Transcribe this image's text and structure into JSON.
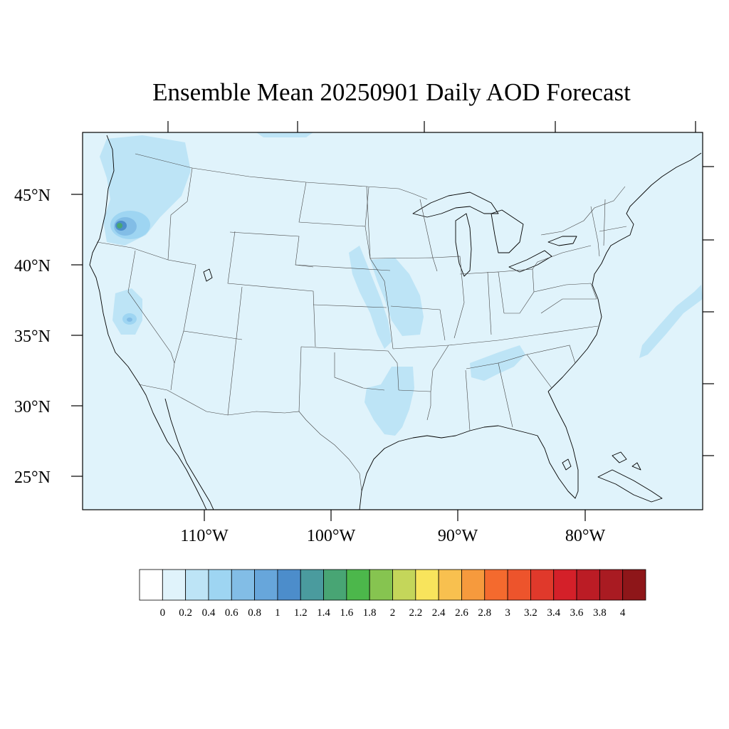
{
  "title": "Ensemble Mean 20250901 Daily AOD Forecast",
  "map": {
    "projection": "Lambert conformal (CONUS)",
    "background_aod_color": "#e0f3fb",
    "latitude_labels": [
      "45°N",
      "40°N",
      "35°N",
      "30°N",
      "25°N"
    ],
    "longitude_labels": [
      "110°W",
      "100°W",
      "90°W",
      "80°W"
    ],
    "aod_features": [
      {
        "region": "Pacific Northwest / Washington",
        "level": "0.2-0.4"
      },
      {
        "region": "Central Oregon smoke core",
        "level": "1.2-1.6"
      },
      {
        "region": "Sierra Nevada / California",
        "level": "0.6-0.8"
      },
      {
        "region": "Missouri River valley",
        "level": "0.2-0.4"
      },
      {
        "region": "Iowa / Missouri",
        "level": "0.2-0.4"
      },
      {
        "region": "East Texas / Louisiana",
        "level": "0.2-0.4"
      },
      {
        "region": "Tennessee / Alabama",
        "level": "0.2-0.4"
      },
      {
        "region": "Atlantic offshore plume",
        "level": "0.2-0.4"
      }
    ]
  },
  "colorbar": {
    "labels": [
      "0",
      "0.2",
      "0.4",
      "0.6",
      "0.8",
      "1",
      "1.2",
      "1.4",
      "1.6",
      "1.8",
      "2",
      "2.2",
      "2.4",
      "2.6",
      "2.8",
      "3",
      "3.2",
      "3.4",
      "3.6",
      "3.8",
      "4"
    ],
    "colors": [
      "#ffffff",
      "#e0f3fb",
      "#bde4f6",
      "#9ed5f2",
      "#82bde6",
      "#67a6db",
      "#4c8dcb",
      "#4a9b9e",
      "#48a574",
      "#4cb74b",
      "#86c450",
      "#c4d65a",
      "#f8e45c",
      "#f8c04f",
      "#f69a3d",
      "#f46a2e",
      "#ed542c",
      "#e0392b",
      "#d42029",
      "#bb1c25",
      "#a91b22",
      "#8e1619"
    ]
  }
}
